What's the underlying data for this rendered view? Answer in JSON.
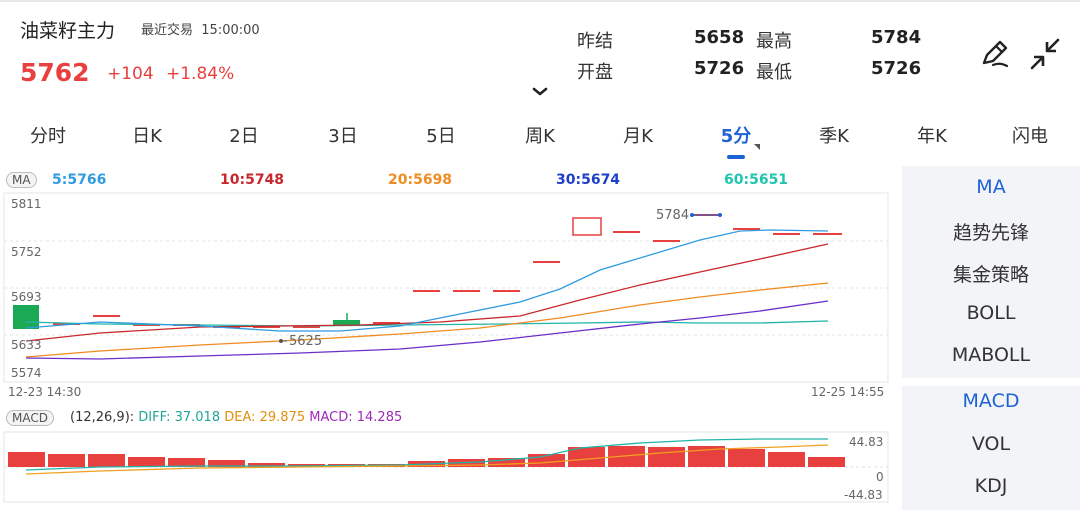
{
  "header": {
    "title": "油菜籽主力",
    "recent_label": "最近交易",
    "recent_time": "15:00:00",
    "price": "5762",
    "change": "+104",
    "change_pct": "+1.84%"
  },
  "stats": {
    "prev_settle_label": "昨结",
    "prev_settle": "5658",
    "high_label": "最高",
    "high": "5784",
    "open_label": "开盘",
    "open": "5726",
    "low_label": "最低",
    "low": "5726"
  },
  "icons": {
    "draw": "pencil-draw-icon",
    "collapse": "collapse-arrows-icon",
    "expand": "chevron-down-icon"
  },
  "tabs": [
    {
      "label": "分时"
    },
    {
      "label": "日K"
    },
    {
      "label": "2日"
    },
    {
      "label": "3日"
    },
    {
      "label": "5日"
    },
    {
      "label": "周K"
    },
    {
      "label": "月K"
    },
    {
      "label": "5分",
      "active": true
    },
    {
      "label": "季K"
    },
    {
      "label": "年K"
    },
    {
      "label": "闪电"
    }
  ],
  "ma_legend": {
    "tag": "MA",
    "ma5": "5:5766",
    "ma10": "10:5748",
    "ma20": "20:5698",
    "ma30": "30:5674",
    "ma60": "60:5651"
  },
  "price_axis": [
    "5811",
    "5752",
    "5693",
    "5633",
    "5574"
  ],
  "time_axis": {
    "start": "12-23 14:30",
    "end": "12-25 14:55"
  },
  "annotations": {
    "high": "5784",
    "low": "5625"
  },
  "macd": {
    "tag": "MACD",
    "params": "(12,26,9):",
    "diff": "DIFF: 37.018",
    "dea": "DEA: 29.875",
    "macd": "MACD: 14.285",
    "axis_top": "44.83",
    "axis_mid": "0",
    "axis_bottom": "-44.83"
  },
  "side_panel": {
    "group1": [
      {
        "label": "MA",
        "active": true
      },
      {
        "label": "趋势先锋"
      },
      {
        "label": "集金策略"
      },
      {
        "label": "BOLL"
      },
      {
        "label": "MABOLL"
      }
    ],
    "group2": [
      {
        "label": "MACD",
        "active": true
      },
      {
        "label": "VOL"
      },
      {
        "label": "KDJ"
      }
    ]
  },
  "colors": {
    "up": "#e8403f",
    "down": "#1aaa55",
    "accent": "#1e62d6",
    "ma5": "#2f9be0",
    "ma10": "#c8282c",
    "ma20": "#f08c22",
    "ma30": "#6a2fc9",
    "ma60": "#20b5a8"
  }
}
